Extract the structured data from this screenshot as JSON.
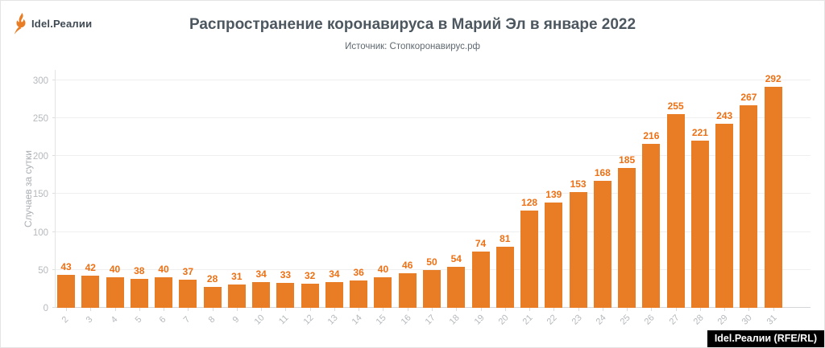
{
  "logo": {
    "icon": "torch-icon",
    "text": "Idel.Реалии"
  },
  "header": {
    "title": "Распространение коронавируса в Марий Эл в январе 2022",
    "subtitle": "Источник: Стопкоронавирус.рф"
  },
  "chart_data": {
    "type": "bar",
    "title": "Распространение коронавируса в Марий Эл в январе 2022",
    "source": "Стопкоронавирус.рф",
    "xlabel": "",
    "ylabel": "Случаев за сутки",
    "categories": [
      "2",
      "3",
      "4",
      "5",
      "6",
      "7",
      "8",
      "9",
      "10",
      "11",
      "12",
      "13",
      "14",
      "15",
      "16",
      "17",
      "18",
      "19",
      "20",
      "21",
      "22",
      "23",
      "24",
      "25",
      "26",
      "27",
      "28",
      "29",
      "30",
      "31"
    ],
    "values": [
      43,
      42,
      40,
      38,
      40,
      37,
      28,
      31,
      34,
      33,
      32,
      34,
      36,
      40,
      46,
      50,
      54,
      74,
      81,
      128,
      139,
      153,
      168,
      185,
      216,
      255,
      221,
      243,
      267,
      292
    ],
    "ylim": [
      0,
      300
    ],
    "yticks": [
      0,
      50,
      100,
      150,
      200,
      250,
      300
    ],
    "grid": true,
    "legend_position": "none",
    "bar_color": "#E87D25",
    "value_label_color": "#ED7014"
  },
  "footer_badge": {
    "text": "Idel.Реалии (RFE/RL)"
  },
  "colors": {
    "accent": "#E87D25",
    "title": "#4d5760",
    "subtitle": "#5e6870",
    "tick_label": "#b5b9bc",
    "gridline": "#efefef",
    "axis_line": "#d3d6d8",
    "badge_bg": "#000000",
    "badge_text": "#ffffff"
  }
}
